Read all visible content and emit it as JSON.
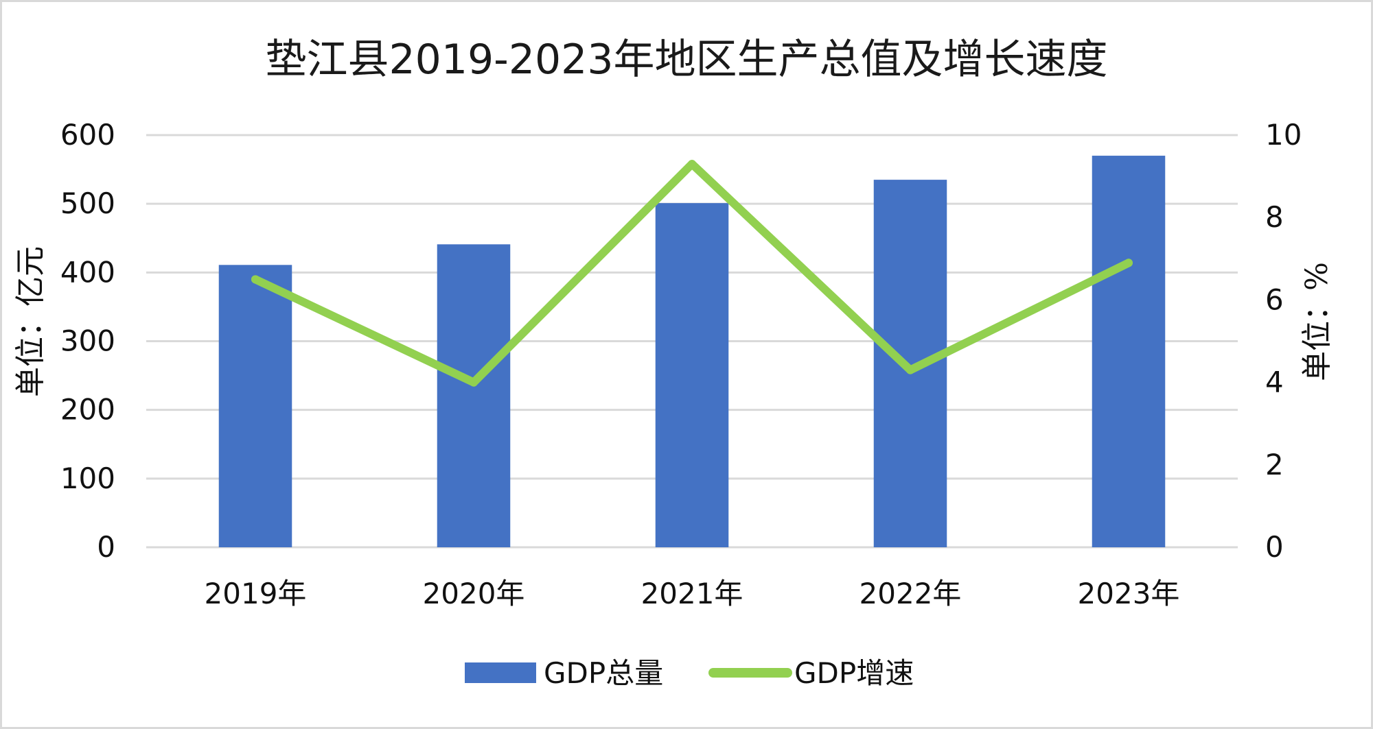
{
  "chart_data": {
    "type": "bar",
    "title": "垫江县2019-2023年地区生产总值及增长速度",
    "categories": [
      "2019年",
      "2020年",
      "2021年",
      "2022年",
      "2023年"
    ],
    "series": [
      {
        "name": "GDP总量",
        "type": "bar",
        "axis": "left",
        "color": "#4472c4",
        "values": [
          411,
          441,
          501,
          535,
          570
        ]
      },
      {
        "name": "GDP增速",
        "type": "line",
        "axis": "right",
        "color": "#92d050",
        "values": [
          6.5,
          4.0,
          9.3,
          4.3,
          6.9
        ]
      }
    ],
    "ylabel": "单位：亿元",
    "y2label": "单位：%",
    "ylim": [
      0,
      600
    ],
    "y2lim": [
      0,
      10
    ],
    "yticks": [
      "0",
      "100",
      "200",
      "300",
      "400",
      "500",
      "600"
    ],
    "y2ticks": [
      "0",
      "2",
      "4",
      "6",
      "8",
      "10"
    ],
    "grid": true,
    "legend_position": "bottom"
  }
}
